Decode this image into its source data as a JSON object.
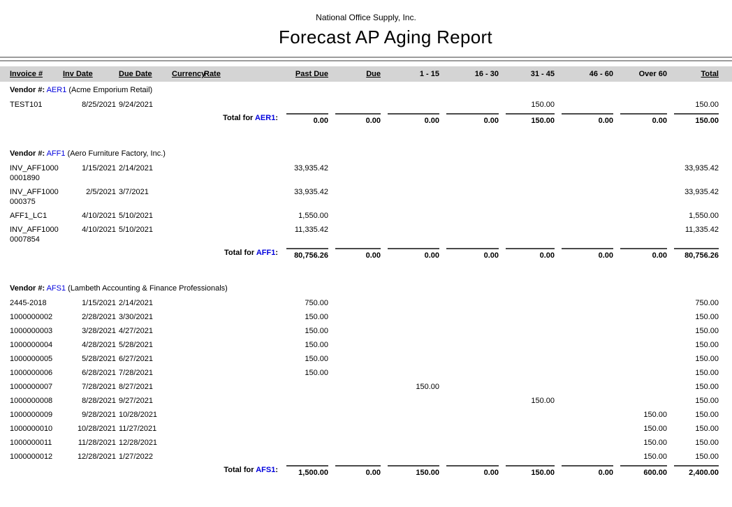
{
  "colors": {
    "accent": "#0000dd",
    "header_bg": "#d4d4d4",
    "rule": "#9c9c9c",
    "total_line": "#4a4a4a"
  },
  "page": {
    "company": "National Office Supply, Inc.",
    "title": "Forecast AP Aging Report"
  },
  "labels": {
    "vendor_prefix": "Vendor #:",
    "total_prefix": "Total for",
    "total_suffix": ":"
  },
  "table": {
    "columns": [
      {
        "key": "invoice",
        "label": "Invoice #",
        "underline": true
      },
      {
        "key": "inv_date",
        "label": "Inv Date",
        "underline": true
      },
      {
        "key": "due_date",
        "label": "Due Date",
        "underline": true
      },
      {
        "key": "currency",
        "label": "Currency",
        "underline": true
      },
      {
        "key": "rate",
        "label": "Rate",
        "underline": true
      },
      {
        "key": "past_due",
        "label": "Past Due",
        "underline": true
      },
      {
        "key": "due",
        "label": "Due",
        "underline": true
      },
      {
        "key": "b1_15",
        "label": "1 - 15",
        "underline": false
      },
      {
        "key": "b16_30",
        "label": "16 - 30",
        "underline": false
      },
      {
        "key": "b31_45",
        "label": "31 - 45",
        "underline": false
      },
      {
        "key": "b46_60",
        "label": "46 - 60",
        "underline": false
      },
      {
        "key": "over_60",
        "label": "Over 60",
        "underline": false
      },
      {
        "key": "total",
        "label": "Total",
        "underline": true
      }
    ]
  },
  "vendors": [
    {
      "code": "AER1",
      "name": "(Acme Emporium Retail)",
      "rows": [
        {
          "invoice": "TEST101",
          "inv_date": "8/25/2021",
          "due_date": "9/24/2021",
          "b31_45": "150.00",
          "total": "150.00"
        }
      ],
      "totals": {
        "past_due": "0.00",
        "due": "0.00",
        "b1_15": "0.00",
        "b16_30": "0.00",
        "b31_45": "150.00",
        "b46_60": "0.00",
        "over_60": "0.00",
        "total": "150.00"
      }
    },
    {
      "code": "AFF1",
      "name": "(Aero Furniture Factory, Inc.)",
      "rows": [
        {
          "invoice": "INV_AFF10000001890",
          "inv_date": "1/15/2021",
          "due_date": "2/14/2021",
          "past_due": "33,935.42",
          "total": "33,935.42"
        },
        {
          "invoice": "INV_AFF1000000375",
          "inv_date": "2/5/2021",
          "due_date": "3/7/2021",
          "past_due": "33,935.42",
          "total": "33,935.42"
        },
        {
          "invoice": "AFF1_LC1",
          "inv_date": "4/10/2021",
          "due_date": "5/10/2021",
          "past_due": "1,550.00",
          "total": "1,550.00"
        },
        {
          "invoice": "INV_AFF10000007854",
          "inv_date": "4/10/2021",
          "due_date": "5/10/2021",
          "past_due": "11,335.42",
          "total": "11,335.42"
        }
      ],
      "totals": {
        "past_due": "80,756.26",
        "due": "0.00",
        "b1_15": "0.00",
        "b16_30": "0.00",
        "b31_45": "0.00",
        "b46_60": "0.00",
        "over_60": "0.00",
        "total": "80,756.26"
      }
    },
    {
      "code": "AFS1",
      "name": "(Lambeth Accounting & Finance Professionals)",
      "rows": [
        {
          "invoice": "2445-2018",
          "inv_date": "1/15/2021",
          "due_date": "2/14/2021",
          "past_due": "750.00",
          "total": "750.00"
        },
        {
          "invoice": "1000000002",
          "inv_date": "2/28/2021",
          "due_date": "3/30/2021",
          "past_due": "150.00",
          "total": "150.00"
        },
        {
          "invoice": "1000000003",
          "inv_date": "3/28/2021",
          "due_date": "4/27/2021",
          "past_due": "150.00",
          "total": "150.00"
        },
        {
          "invoice": "1000000004",
          "inv_date": "4/28/2021",
          "due_date": "5/28/2021",
          "past_due": "150.00",
          "total": "150.00"
        },
        {
          "invoice": "1000000005",
          "inv_date": "5/28/2021",
          "due_date": "6/27/2021",
          "past_due": "150.00",
          "total": "150.00"
        },
        {
          "invoice": "1000000006",
          "inv_date": "6/28/2021",
          "due_date": "7/28/2021",
          "past_due": "150.00",
          "total": "150.00"
        },
        {
          "invoice": "1000000007",
          "inv_date": "7/28/2021",
          "due_date": "8/27/2021",
          "b1_15": "150.00",
          "total": "150.00"
        },
        {
          "invoice": "1000000008",
          "inv_date": "8/28/2021",
          "due_date": "9/27/2021",
          "b31_45": "150.00",
          "total": "150.00"
        },
        {
          "invoice": "1000000009",
          "inv_date": "9/28/2021",
          "due_date": "10/28/2021",
          "over_60": "150.00",
          "total": "150.00"
        },
        {
          "invoice": "1000000010",
          "inv_date": "10/28/2021",
          "due_date": "11/27/2021",
          "over_60": "150.00",
          "total": "150.00"
        },
        {
          "invoice": "1000000011",
          "inv_date": "11/28/2021",
          "due_date": "12/28/2021",
          "over_60": "150.00",
          "total": "150.00"
        },
        {
          "invoice": "1000000012",
          "inv_date": "12/28/2021",
          "due_date": "1/27/2022",
          "over_60": "150.00",
          "total": "150.00"
        }
      ],
      "totals": {
        "past_due": "1,500.00",
        "due": "0.00",
        "b1_15": "150.00",
        "b16_30": "0.00",
        "b31_45": "150.00",
        "b46_60": "0.00",
        "over_60": "600.00",
        "total": "2,400.00"
      }
    }
  ]
}
